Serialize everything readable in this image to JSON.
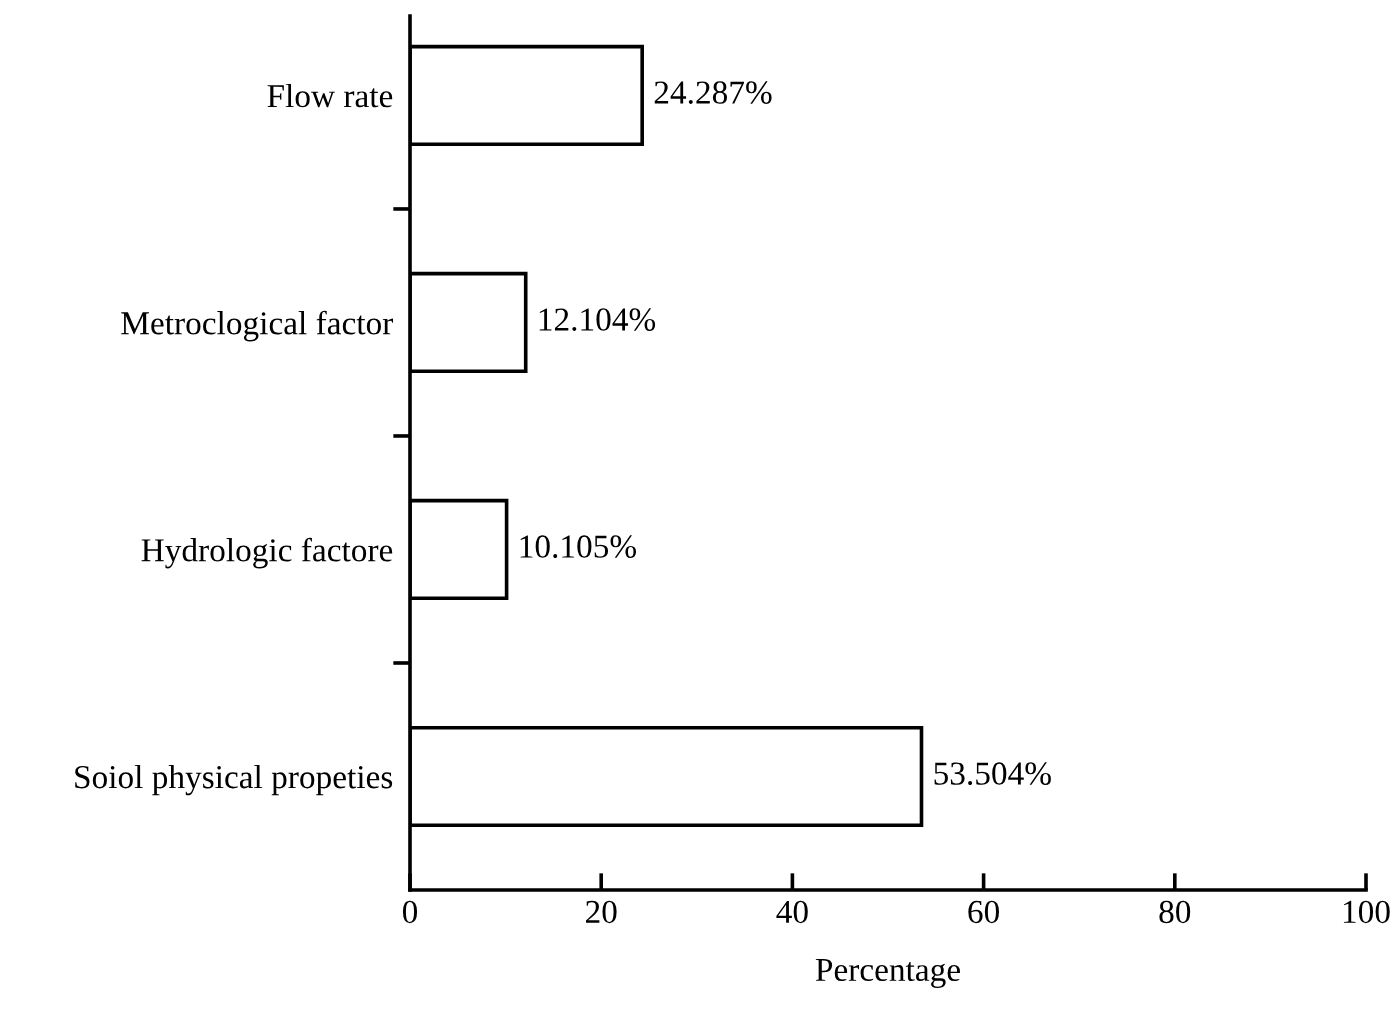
{
  "chart_data": {
    "type": "bar",
    "orientation": "horizontal",
    "xlabel": "Percentage",
    "categories": [
      "Flow rate",
      "Metroclogical factor",
      "Hydrologic factore",
      "Soiol physical propeties"
    ],
    "values": [
      24.287,
      12.104,
      10.105,
      53.504
    ],
    "value_labels": [
      "24.287%",
      "12.104%",
      "10.105%",
      "53.504%"
    ],
    "color": "#ffffff",
    "xlim": [
      0,
      100
    ],
    "xticks": [
      0,
      20,
      40,
      60,
      80,
      100
    ],
    "grid": false,
    "legend": false
  }
}
